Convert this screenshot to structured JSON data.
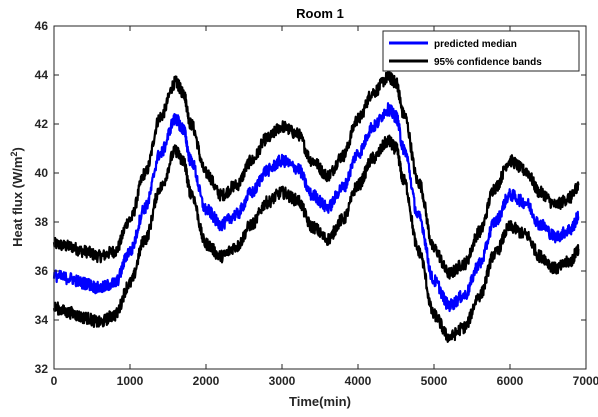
{
  "chart_data": {
    "type": "line",
    "title": "Room 1",
    "xlabel": "Time(min)",
    "ylabel": "Heat flux (W/m²)",
    "xlim": [
      0,
      7000
    ],
    "ylim": [
      32,
      46
    ],
    "xticks": [
      0,
      1000,
      2000,
      3000,
      4000,
      5000,
      6000,
      7000
    ],
    "xtick_labels": [
      "0",
      "1000",
      "2000",
      "3000",
      "4000",
      "5000",
      "6000",
      "7000"
    ],
    "yticks": [
      32,
      34,
      36,
      38,
      40,
      42,
      44,
      46
    ],
    "ytick_labels": [
      "32",
      "34",
      "36",
      "38",
      "40",
      "42",
      "44",
      "46"
    ],
    "grid": false,
    "legend_position": "top-right",
    "x": [
      0,
      200,
      400,
      600,
      800,
      1000,
      1200,
      1400,
      1600,
      1700,
      1800,
      2000,
      2200,
      2400,
      2600,
      2800,
      3000,
      3200,
      3400,
      3600,
      3800,
      4000,
      4200,
      4400,
      4500,
      4600,
      4800,
      5000,
      5200,
      5400,
      5600,
      5800,
      6000,
      6200,
      6400,
      6600,
      6800,
      6900
    ],
    "series": [
      {
        "name": "predicted median",
        "color": "#0000ff",
        "values": [
          35.8,
          35.7,
          35.5,
          35.3,
          35.5,
          36.8,
          38.6,
          40.8,
          42.2,
          41.8,
          40.5,
          38.5,
          37.9,
          38.3,
          39.2,
          40.1,
          40.5,
          40.2,
          39.1,
          38.6,
          39.4,
          40.8,
          41.9,
          42.6,
          42.3,
          41.0,
          38.2,
          35.6,
          34.6,
          35.0,
          36.3,
          38.0,
          39.1,
          38.8,
          37.9,
          37.4,
          37.7,
          38.2
        ]
      },
      {
        "name": "95% confidence bands",
        "color": "#000000",
        "values": [
          37.1,
          37.0,
          36.8,
          36.6,
          36.8,
          38.1,
          40.0,
          42.3,
          43.7,
          43.3,
          42.0,
          40.0,
          39.1,
          39.5,
          40.5,
          41.4,
          41.9,
          41.6,
          40.5,
          39.9,
          40.7,
          42.2,
          43.3,
          43.9,
          43.7,
          42.4,
          39.6,
          36.9,
          35.9,
          36.3,
          37.6,
          39.4,
          40.5,
          40.1,
          39.2,
          38.7,
          39.0,
          39.5
        ]
      },
      {
        "values": [
          34.5,
          34.3,
          34.1,
          33.9,
          34.2,
          35.5,
          37.3,
          39.4,
          40.9,
          40.5,
          39.2,
          37.1,
          36.6,
          37.0,
          37.9,
          38.8,
          39.2,
          38.9,
          37.8,
          37.3,
          38.1,
          39.5,
          40.6,
          41.3,
          41.0,
          39.7,
          36.8,
          34.2,
          33.3,
          33.7,
          35.0,
          36.7,
          37.8,
          37.5,
          36.6,
          36.1,
          36.4,
          36.9
        ]
      }
    ]
  }
}
